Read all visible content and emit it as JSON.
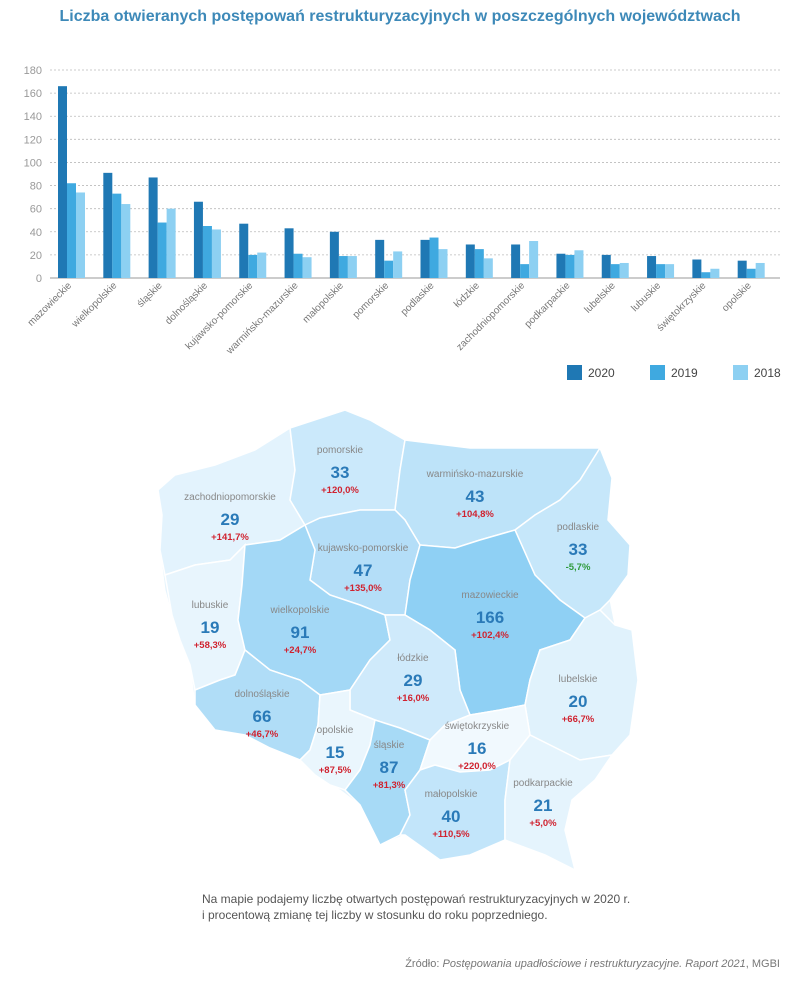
{
  "chart_data": [
    {
      "type": "bar",
      "title": "Liczba otwieranych postępowań restrukturyzacyjnych w poszczególnych województwach",
      "categories": [
        "mazowieckie",
        "wielkopolskie",
        "śląskie",
        "dolnośląskie",
        "kujawsko-pomorskie",
        "warmińsko-mazurskie",
        "małopolskie",
        "pomorskie",
        "podlaskie",
        "łódzkie",
        "zachodniopomorskie",
        "podkarpackie",
        "lubelskie",
        "lubuskie",
        "świętokrzyskie",
        "opolskie"
      ],
      "series": [
        {
          "name": "2020",
          "values": [
            166,
            91,
            87,
            66,
            47,
            43,
            40,
            33,
            33,
            29,
            29,
            21,
            20,
            19,
            16,
            15
          ]
        },
        {
          "name": "2019",
          "values": [
            82,
            73,
            48,
            45,
            20,
            21,
            19,
            15,
            35,
            25,
            12,
            20,
            12,
            12,
            5,
            8
          ]
        },
        {
          "name": "2018",
          "values": [
            74,
            64,
            60,
            42,
            22,
            18,
            19,
            23,
            25,
            17,
            32,
            24,
            13,
            12,
            8,
            13
          ]
        }
      ],
      "ylim": [
        0,
        180
      ],
      "yticks": [
        0,
        20,
        40,
        60,
        80,
        100,
        120,
        140,
        160,
        180
      ],
      "grid": true,
      "legend_position": "bottom-right",
      "colors": {
        "2020": "#1f78b4",
        "2019": "#3fa9e0",
        "2018": "#8dd0f2"
      }
    },
    {
      "type": "map",
      "regions": [
        {
          "name": "pomorskie",
          "value": "33",
          "change": "+120,0%"
        },
        {
          "name": "warmińsko-mazurskie",
          "value": "43",
          "change": "+104,8%"
        },
        {
          "name": "zachodniopomorskie",
          "value": "29",
          "change": "+141,7%"
        },
        {
          "name": "kujawsko-pomorskie",
          "value": "47",
          "change": "+135,0%"
        },
        {
          "name": "podlaskie",
          "value": "33",
          "change": "-5,7%"
        },
        {
          "name": "lubuskie",
          "value": "19",
          "change": "+58,3%"
        },
        {
          "name": "wielkopolskie",
          "value": "91",
          "change": "+24,7%"
        },
        {
          "name": "mazowieckie",
          "value": "166",
          "change": "+102,4%"
        },
        {
          "name": "łódzkie",
          "value": "29",
          "change": "+16,0%"
        },
        {
          "name": "lubelskie",
          "value": "20",
          "change": "+66,7%"
        },
        {
          "name": "dolnośląskie",
          "value": "66",
          "change": "+46,7%"
        },
        {
          "name": "opolskie",
          "value": "15",
          "change": "+87,5%"
        },
        {
          "name": "śląskie",
          "value": "87",
          "change": "+81,3%"
        },
        {
          "name": "świętokrzyskie",
          "value": "16",
          "change": "+220,0%"
        },
        {
          "name": "małopolskie",
          "value": "40",
          "change": "+110,5%"
        },
        {
          "name": "podkarpackie",
          "value": "21",
          "change": "+5,0%"
        }
      ],
      "colors": {
        "positive": "#d0222f",
        "negative": "#2e9a3c"
      }
    }
  ],
  "note": {
    "line1": "Na mapie podajemy liczbę otwartych postępowań restrukturyzacyjnych w 2020 r.",
    "line2": "i procentową zmianę tej liczby w stosunku do roku poprzedniego."
  },
  "source": {
    "prefix": "Źródło: ",
    "italic": "Postępowania upadłościowe i restrukturyzacyjne. Raport 2021",
    "suffix": ", MGBI"
  }
}
